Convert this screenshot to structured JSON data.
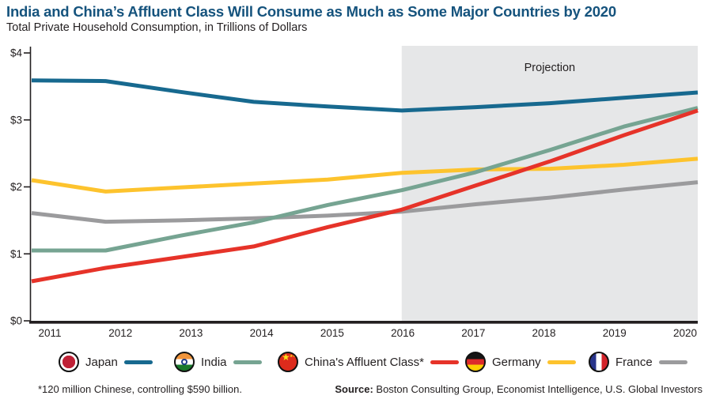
{
  "header": {
    "title": "India and China’s Affluent Class Will Consume as Much as Some Major Countries by 2020",
    "subtitle": "Total Private Household Consumption, in Trillions of Dollars"
  },
  "chart_data": {
    "type": "line",
    "title": "India and China’s Affluent Class Will Consume as Much as Some Major Countries by 2020",
    "ylabel": "Total Private Household Consumption, in Trillions of Dollars",
    "x": [
      2011,
      2012,
      2013,
      2014,
      2015,
      2016,
      2017,
      2018,
      2019,
      2020
    ],
    "ylim": [
      0,
      4
    ],
    "ytick_labels": [
      "$0",
      "$1",
      "$2",
      "$3",
      "$4"
    ],
    "grid": false,
    "legend_position": "bottom",
    "projection": {
      "label": "Projection",
      "start_year": 2016,
      "band_color": "#e6e7e8"
    },
    "series": [
      {
        "name": "Japan",
        "color": "#17698f",
        "values": [
          3.59,
          3.58,
          3.42,
          3.27,
          3.2,
          3.14,
          3.19,
          3.25,
          3.33,
          3.41
        ]
      },
      {
        "name": "India",
        "color": "#76a492",
        "values": [
          1.05,
          1.05,
          1.27,
          1.47,
          1.73,
          1.95,
          2.22,
          2.55,
          2.9,
          3.18
        ]
      },
      {
        "name": "China's Affluent Class*",
        "color": "#e63329",
        "values": [
          0.59,
          0.79,
          0.95,
          1.11,
          1.4,
          1.66,
          2.02,
          2.38,
          2.77,
          3.14
        ]
      },
      {
        "name": "Germany",
        "color": "#fdc32d",
        "values": [
          2.1,
          1.93,
          1.99,
          2.05,
          2.11,
          2.21,
          2.26,
          2.27,
          2.33,
          2.42
        ]
      },
      {
        "name": "France",
        "color": "#9b9b9d",
        "values": [
          1.61,
          1.48,
          1.5,
          1.53,
          1.57,
          1.63,
          1.74,
          1.84,
          1.96,
          2.07
        ]
      }
    ]
  },
  "legend": {
    "items": [
      {
        "label": "Japan",
        "color": "#17698f"
      },
      {
        "label": "India",
        "color": "#76a492"
      },
      {
        "label": "China's Affluent Class*",
        "color": "#e63329"
      },
      {
        "label": "Germany",
        "color": "#fdc32d"
      },
      {
        "label": "France",
        "color": "#9b9b9d"
      }
    ]
  },
  "footer": {
    "note": "*120 million Chinese, controlling $590 billion.",
    "source_label": "Source:",
    "source_text": " Boston Consulting Group, Economist Intelligence, U.S. Global Investors"
  }
}
